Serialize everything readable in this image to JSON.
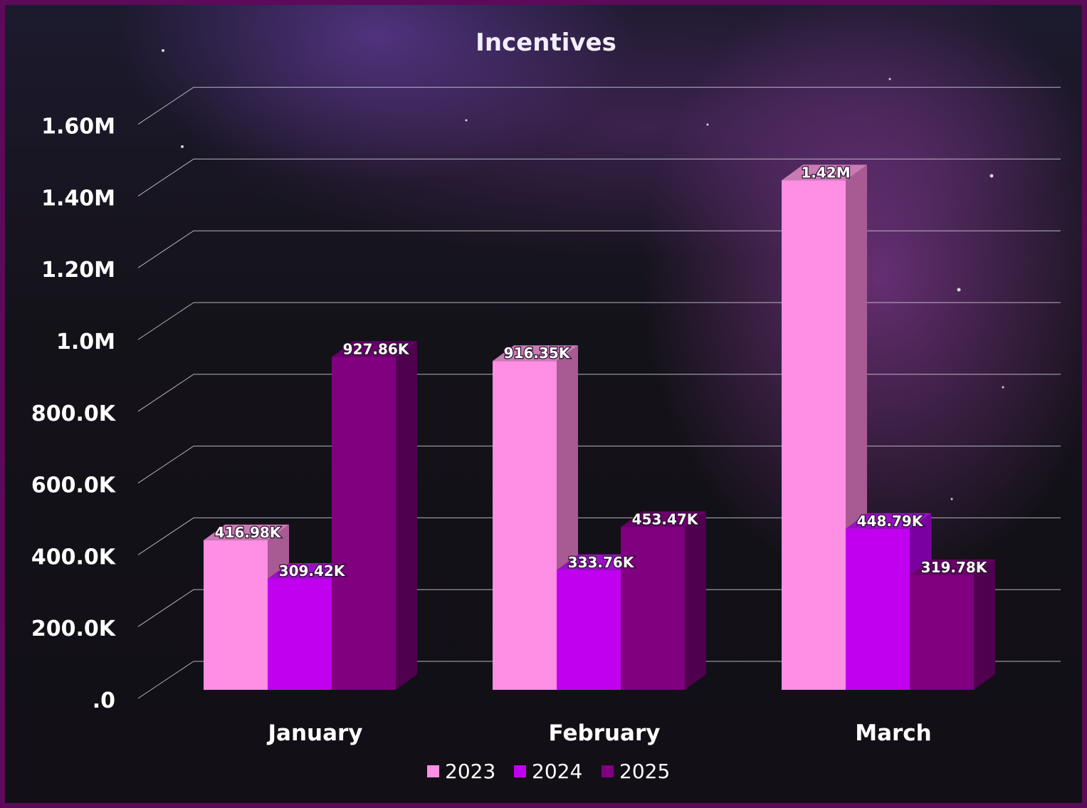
{
  "chart_data": {
    "type": "bar",
    "title": "Incentives",
    "categories": [
      "January",
      "February",
      "March"
    ],
    "series": [
      {
        "name": "2023",
        "values": [
          416980,
          916350,
          1420000
        ],
        "labels": [
          "416.98K",
          "916.35K",
          "1.42M"
        ],
        "color": "#ff8ee5",
        "side_color": "#a85a92",
        "top_color": "#c97bb3"
      },
      {
        "name": "2024",
        "values": [
          309420,
          333760,
          448790
        ],
        "labels": [
          "309.42K",
          "333.76K",
          "448.79K"
        ],
        "color": "#c200f0",
        "side_color": "#7a00a0",
        "top_color": "#9a10c4"
      },
      {
        "name": "2025",
        "values": [
          927860,
          453470,
          319780
        ],
        "labels": [
          "927.86K",
          "453.47K",
          "319.78K"
        ],
        "color": "#800080",
        "side_color": "#4f004f",
        "top_color": "#6a006a"
      }
    ],
    "y_ticks": [
      {
        "value": 0,
        "label": ".0"
      },
      {
        "value": 200000,
        "label": "200.0K"
      },
      {
        "value": 400000,
        "label": "400.0K"
      },
      {
        "value": 600000,
        "label": "600.0K"
      },
      {
        "value": 800000,
        "label": "800.0K"
      },
      {
        "value": 1000000,
        "label": "1.0M"
      },
      {
        "value": 1200000,
        "label": "1.20M"
      },
      {
        "value": 1400000,
        "label": "1.40M"
      },
      {
        "value": 1600000,
        "label": "1.60M"
      }
    ],
    "ylim": [
      0,
      1600000
    ],
    "grid": true,
    "legend_position": "bottom-center",
    "xlabel": "",
    "ylabel": ""
  }
}
